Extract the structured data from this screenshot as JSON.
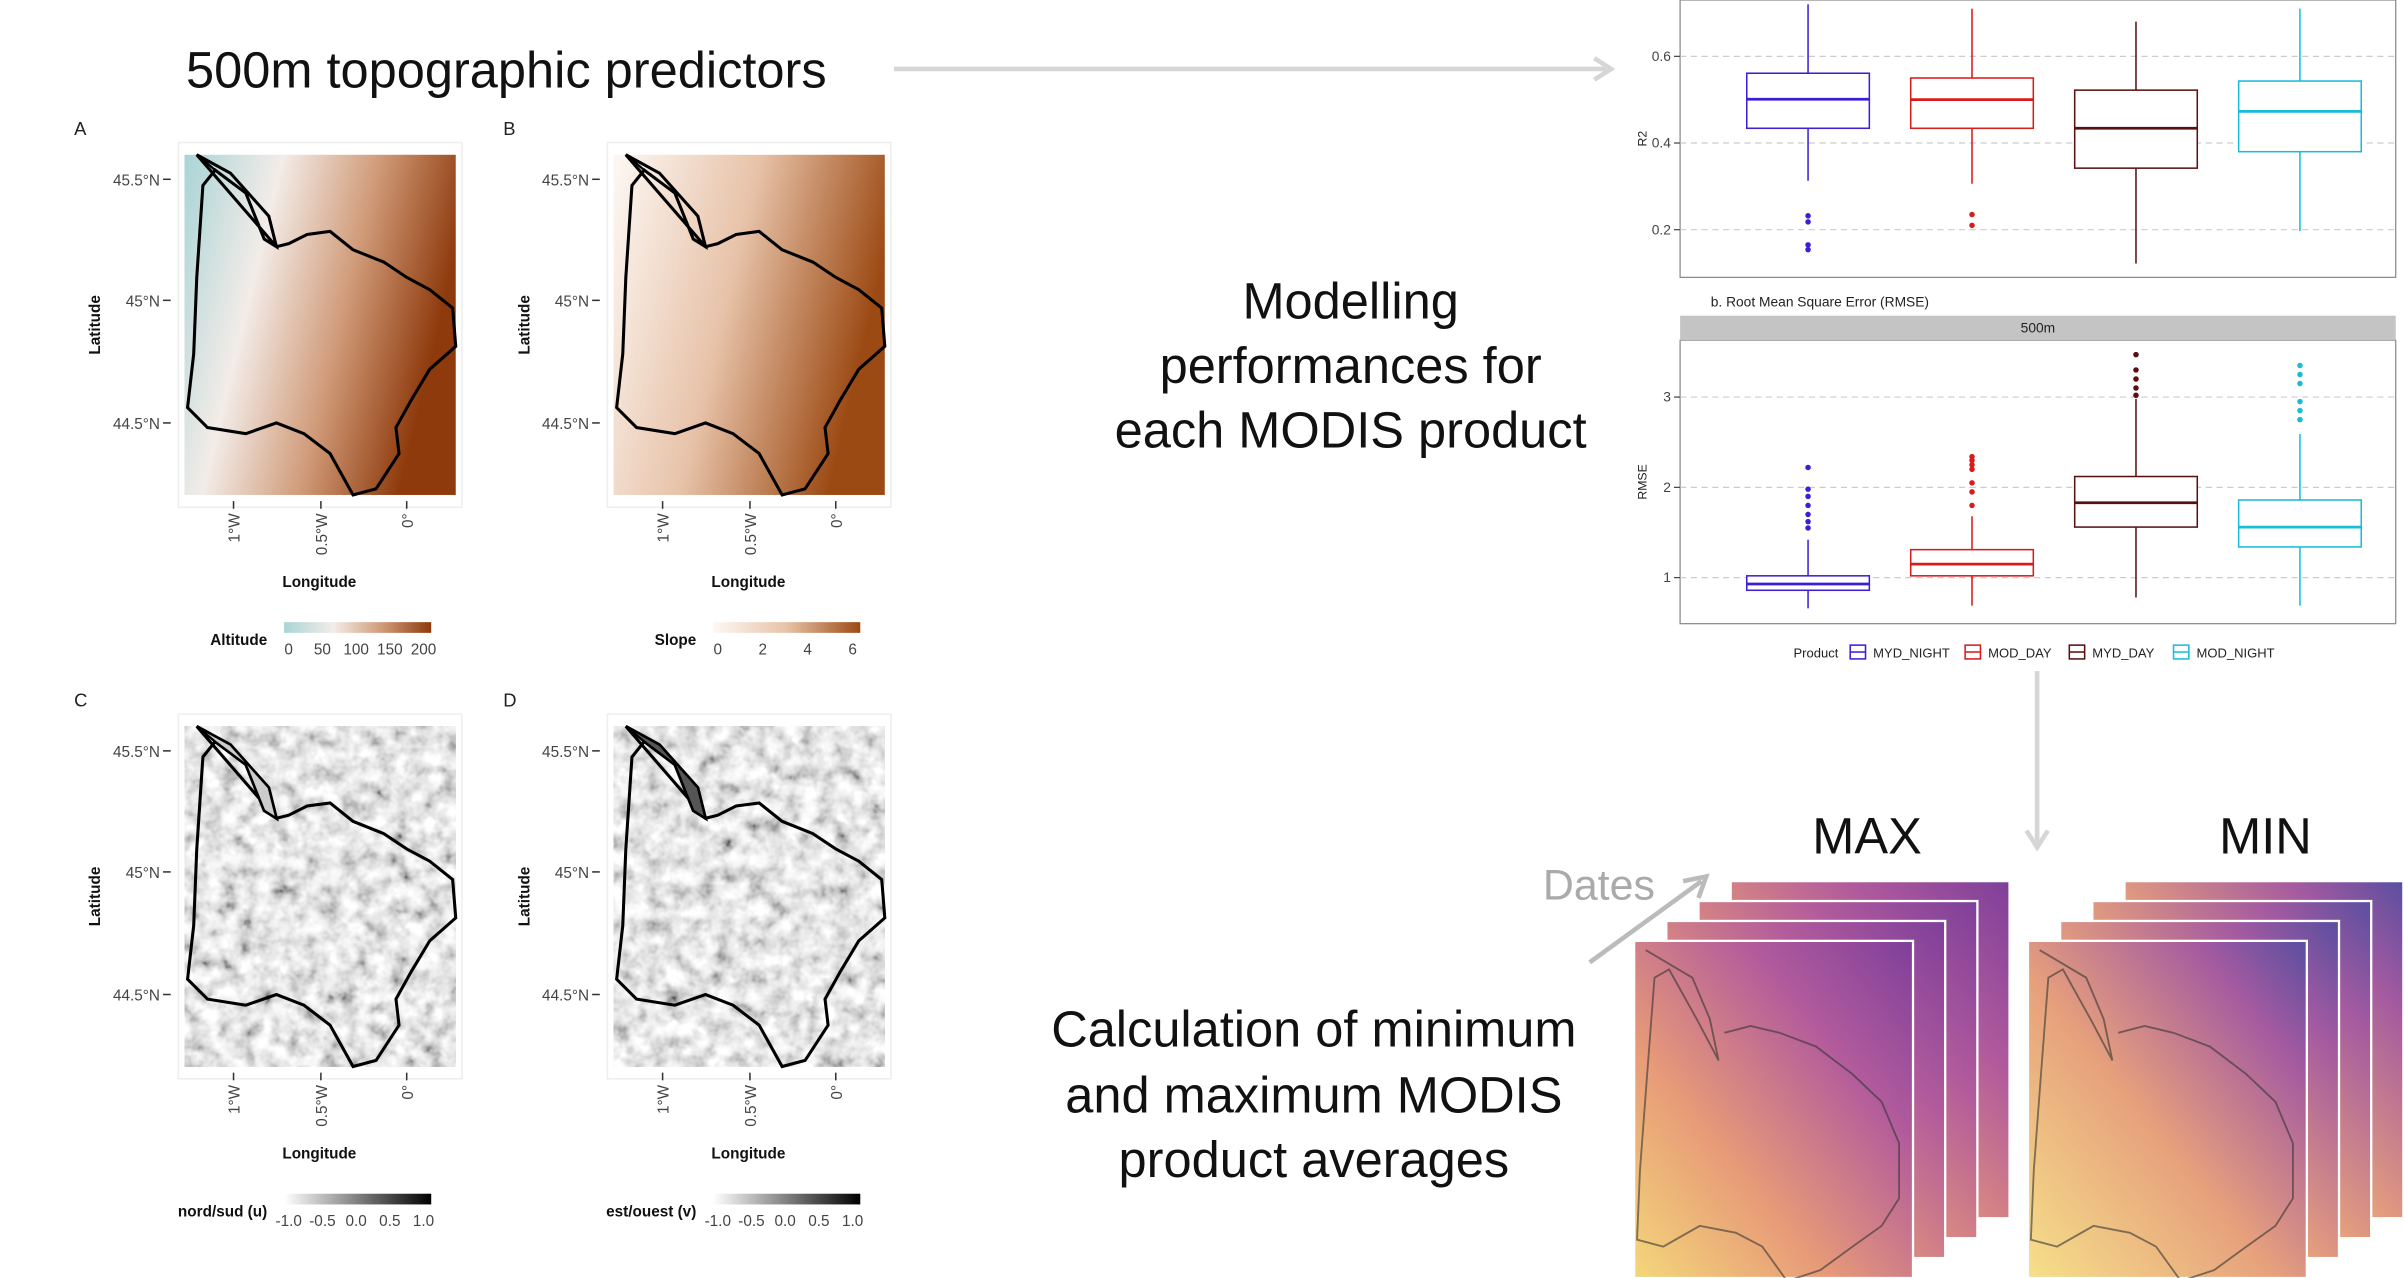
{
  "header": {
    "title": "500m topographic predictors"
  },
  "modelling_text": [
    "Modelling",
    "performances for",
    "each MODIS product"
  ],
  "calculation_text": [
    "Calculation of minimum",
    "and maximum MODIS",
    "product averages"
  ],
  "maps": [
    {
      "label": "A",
      "y_label": "Latitude",
      "x_label": "Longitude",
      "lat_ticks": [
        "45.5°N",
        "45°N",
        "44.5°N"
      ],
      "lon_ticks": [
        "1°W",
        "0.5°W",
        "0°"
      ],
      "legend_title": "Altitude",
      "legend_ticks": [
        "0",
        "50",
        "100",
        "150",
        "200"
      ],
      "colors": [
        "#a9d4d6",
        "#f3ece8",
        "#d09a78",
        "#8e3a0c"
      ]
    },
    {
      "label": "B",
      "y_label": "Latitude",
      "x_label": "Longitude",
      "lat_ticks": [
        "45.5°N",
        "45°N",
        "44.5°N"
      ],
      "lon_ticks": [
        "1°W",
        "0.5°W",
        "0°"
      ],
      "legend_title": "Slope",
      "legend_ticks": [
        "0",
        "2",
        "4",
        "6"
      ],
      "colors": [
        "#fdf8f4",
        "#e7c2a8",
        "#9c4a14"
      ]
    },
    {
      "label": "C",
      "y_label": "Latitude",
      "x_label": "Longitude",
      "lat_ticks": [
        "45.5°N",
        "45°N",
        "44.5°N"
      ],
      "lon_ticks": [
        "1°W",
        "0.5°W",
        "0°"
      ],
      "legend_title": "nord/sud (u)",
      "legend_ticks": [
        "-1.0",
        "-0.5",
        "0.0",
        "0.5",
        "1.0"
      ],
      "colors": [
        "#ffffff",
        "#000000"
      ]
    },
    {
      "label": "D",
      "y_label": "Latitude",
      "x_label": "Longitude",
      "lat_ticks": [
        "45.5°N",
        "45°N",
        "44.5°N"
      ],
      "lon_ticks": [
        "1°W",
        "0.5°W",
        "0°"
      ],
      "legend_title": "est/ouest (v)",
      "legend_ticks": [
        "-1.0",
        "-0.5",
        "0.0",
        "0.5",
        "1.0"
      ],
      "colors": [
        "#ffffff",
        "#000000"
      ]
    }
  ],
  "images": [
    {
      "label": "MAX"
    },
    {
      "label": "MIN"
    }
  ],
  "dates_label": "Dates",
  "chart_data": [
    {
      "type": "box",
      "y_label": "R2",
      "ylim": [
        0.09,
        0.73
      ],
      "yticks": [
        0.2,
        0.4,
        0.6
      ],
      "grid": true,
      "series": [
        {
          "color": "#3b1fd6",
          "whisker_low": 0.313,
          "q1": 0.434,
          "median": 0.501,
          "q3": 0.561,
          "whisker_high": 0.72,
          "outliers": [
            0.232,
            0.218,
            0.165,
            0.154
          ]
        },
        {
          "color": "#d81b1b",
          "whisker_low": 0.306,
          "q1": 0.434,
          "median": 0.5,
          "q3": 0.55,
          "whisker_high": 0.71,
          "outliers": [
            0.235,
            0.21
          ]
        },
        {
          "color": "#5a1010",
          "whisker_low": 0.122,
          "q1": 0.342,
          "median": 0.434,
          "q3": 0.522,
          "whisker_high": 0.68,
          "outliers": []
        },
        {
          "color": "#18bcd8",
          "whisker_low": 0.197,
          "q1": 0.38,
          "median": 0.473,
          "q3": 0.543,
          "whisker_high": 0.71,
          "outliers": []
        }
      ]
    },
    {
      "type": "box",
      "title": "b. Root Mean Square Error (RMSE)",
      "strip": "500m",
      "y_label": "RMSE",
      "ylim": [
        0.49,
        3.63
      ],
      "yticks": [
        1,
        2,
        3
      ],
      "grid": true,
      "legend_title": "Product",
      "series": [
        {
          "name": "MYD_NIGHT",
          "color": "#3b1fd6",
          "whisker_low": 0.66,
          "q1": 0.86,
          "median": 0.93,
          "q3": 1.02,
          "whisker_high": 1.42,
          "outliers": [
            2.22,
            1.98,
            1.9,
            1.8,
            1.7,
            1.62,
            1.55
          ]
        },
        {
          "name": "MOD_DAY",
          "color": "#d81b1b",
          "whisker_low": 0.69,
          "q1": 1.02,
          "median": 1.15,
          "q3": 1.31,
          "whisker_high": 1.68,
          "outliers": [
            2.34,
            2.3,
            2.25,
            2.2,
            2.05,
            1.95,
            1.8
          ]
        },
        {
          "name": "MYD_DAY",
          "color": "#5a1010",
          "whisker_low": 0.78,
          "q1": 1.56,
          "median": 1.83,
          "q3": 2.12,
          "whisker_high": 2.98,
          "outliers": [
            3.47,
            3.3,
            3.2,
            3.1,
            3.02
          ]
        },
        {
          "name": "MOD_NIGHT",
          "color": "#18bcd8",
          "whisker_low": 0.69,
          "q1": 1.34,
          "median": 1.56,
          "q3": 1.86,
          "whisker_high": 2.59,
          "outliers": [
            3.35,
            3.25,
            3.15,
            2.95,
            2.85,
            2.75
          ]
        }
      ]
    }
  ]
}
